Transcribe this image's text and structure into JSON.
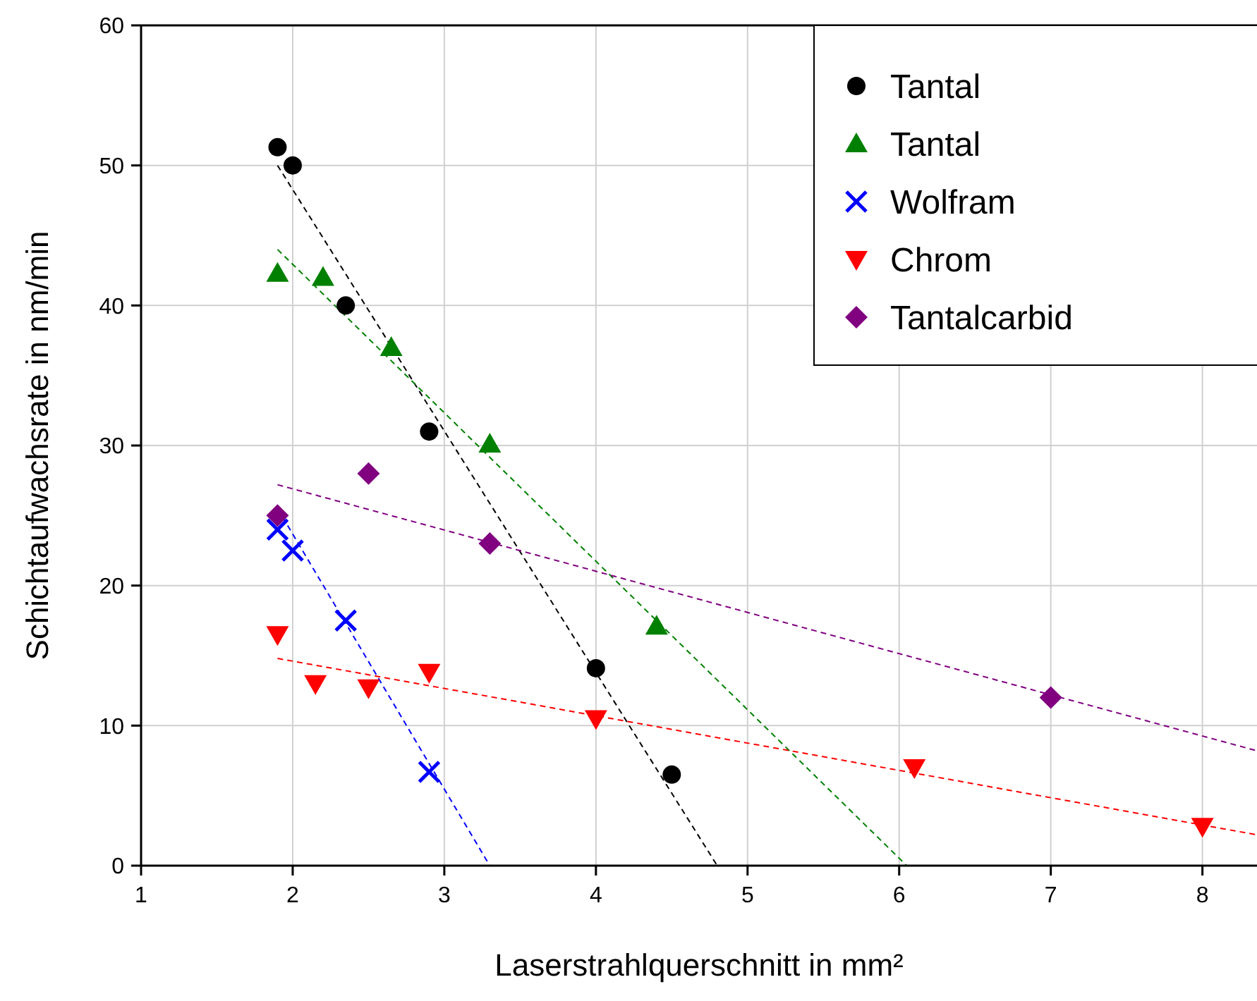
{
  "chart_data": {
    "type": "scatter",
    "xlabel": "Laserstrahlquerschnitt in mm²",
    "ylabel": "Schichtaufwachsrate in nm/min",
    "xlim": [
      1,
      8.36
    ],
    "xticks": [
      1,
      2,
      3,
      4,
      5,
      6,
      7,
      8
    ],
    "ylim": [
      0,
      60
    ],
    "yticks": [
      0,
      10,
      20,
      30,
      40,
      50,
      60
    ],
    "grid": true,
    "legend": "top right",
    "series": [
      {
        "name": "Tantal",
        "color": "#000000",
        "marker": "circle",
        "x": [
          1.9,
          2.0,
          2.35,
          2.9,
          4.0,
          4.5
        ],
        "values": [
          51.3,
          50,
          40,
          31,
          14.1,
          6.5
        ]
      },
      {
        "name": "Tantal",
        "color": "#008000",
        "marker": "triangle",
        "x": [
          1.9,
          2.2,
          2.65,
          3.3,
          4.4
        ],
        "values": [
          42.3,
          42,
          37,
          30.1,
          17.1
        ]
      },
      {
        "name": "Wolfram",
        "color": "#0000ff",
        "marker": "cross",
        "x": [
          1.9,
          2.0,
          2.35,
          2.9
        ],
        "values": [
          24,
          22.5,
          17.5,
          6.7
        ]
      },
      {
        "name": "Chrom",
        "color": "#ff0000",
        "marker": "triangle-down",
        "x": [
          1.9,
          2.15,
          2.5,
          2.9,
          4.0,
          6.1,
          8.0
        ],
        "values": [
          16.5,
          13,
          12.7,
          13.8,
          10.5,
          7,
          2.8
        ]
      },
      {
        "name": "Tantalcarbid",
        "color": "#800080",
        "marker": "diamond",
        "x": [
          1.9,
          2.5,
          3.3,
          7.0
        ],
        "values": [
          25,
          28,
          23,
          12
        ]
      },
      {
        "type": "line",
        "color": "#000000",
        "line_style": "dashed",
        "x": [
          1.9,
          4.8
        ],
        "values": [
          50,
          0
        ]
      },
      {
        "type": "line",
        "color": "#008000",
        "line_style": "dashed",
        "x": [
          1.9,
          6.05
        ],
        "values": [
          44,
          0
        ]
      },
      {
        "type": "line",
        "color": "#0000ff",
        "line_style": "dashed",
        "x": [
          1.9,
          3.3
        ],
        "values": [
          25.5,
          0
        ]
      },
      {
        "type": "line",
        "color": "#ff0000",
        "line_style": "dashed",
        "x": [
          1.9,
          8.36
        ],
        "values": [
          14.8,
          2.2
        ]
      },
      {
        "type": "line",
        "color": "#800080",
        "line_style": "dashed",
        "x": [
          1.9,
          8.36
        ],
        "values": [
          27.2,
          8.2
        ]
      }
    ]
  }
}
